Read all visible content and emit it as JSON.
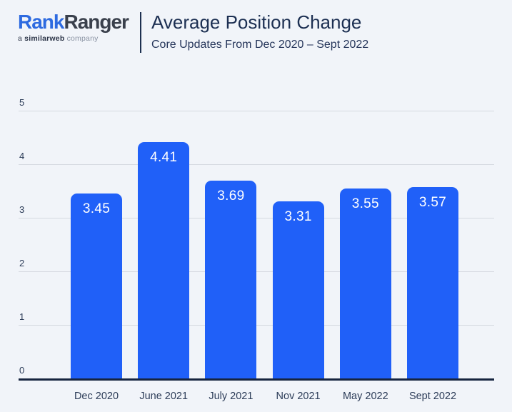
{
  "header": {
    "logo": {
      "brand_part1": "Rank",
      "brand_part2": "Ranger",
      "tagline_prefix": "a ",
      "tagline_brand": "similarweb",
      "tagline_suffix": " company"
    },
    "title": "Average Position Change",
    "subtitle": "Core Updates From Dec 2020 – Sept 2022"
  },
  "colors": {
    "background": "#f1f4f9",
    "bar_fill": "#2060f8",
    "bar_value_text": "#ffffff",
    "title_navy": "#1c2f52",
    "logo_blue": "#2d6ae0",
    "logo_dark": "#3a404c",
    "tagline_gray": "#8a93a3",
    "gridline_gray": "#d5d9e0",
    "axis_navy": "#16243f"
  },
  "chart_data": {
    "type": "bar",
    "title": "Average Position Change",
    "subtitle": "Core Updates From Dec 2020 – Sept 2022",
    "categories": [
      "Dec 2020",
      "June 2021",
      "July 2021",
      "Nov 2021",
      "May 2022",
      "Sept 2022"
    ],
    "values": [
      3.45,
      4.41,
      3.69,
      3.31,
      3.55,
      3.57
    ],
    "value_labels": [
      "3.45",
      "4.41",
      "3.69",
      "3.31",
      "3.55",
      "3.57"
    ],
    "xlabel": "",
    "ylabel": "",
    "ylim": [
      0,
      5
    ],
    "yticks": [
      0,
      1,
      2,
      3,
      4,
      5
    ],
    "grid": true,
    "legend": false
  }
}
